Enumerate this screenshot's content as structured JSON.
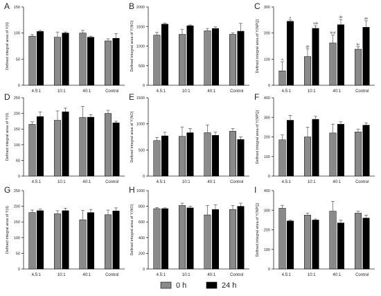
{
  "colors": {
    "h0": "#8a8a8a",
    "h24": "#000000",
    "axis": "#222222",
    "error": "#555555"
  },
  "legend": {
    "items": [
      {
        "label": "0 h",
        "color": "#8a8a8a"
      },
      {
        "label": "24 h",
        "color": "#000000"
      }
    ]
  },
  "chart_data": [
    {
      "panel": "A",
      "type": "bar",
      "ylabel": "Defined integral area of Y(II)",
      "ylim": [
        0,
        150
      ],
      "yticks": [
        0,
        50,
        100,
        150
      ],
      "categories": [
        "4.5:1",
        "10:1",
        "40:1",
        "Control"
      ],
      "series": [
        {
          "name": "0 h",
          "values": [
            94,
            92,
            100,
            85
          ],
          "errors": [
            3,
            10,
            5,
            4
          ]
        },
        {
          "name": "24 h",
          "values": [
            103,
            100,
            92,
            90
          ],
          "errors": [
            2,
            2,
            2,
            9
          ]
        }
      ],
      "annotations": []
    },
    {
      "panel": "B",
      "type": "bar",
      "ylabel": "Defined integral area of Y(NO)",
      "ylim": [
        0,
        2000
      ],
      "yticks": [
        0,
        500,
        1000,
        1500,
        2000
      ],
      "categories": [
        "4.5:1",
        "10:1",
        "40:1",
        "Control"
      ],
      "series": [
        {
          "name": "0 h",
          "values": [
            1280,
            1300,
            1390,
            1300
          ],
          "errors": [
            70,
            130,
            60,
            40
          ]
        },
        {
          "name": "24 h",
          "values": [
            1560,
            1520,
            1450,
            1380
          ],
          "errors": [
            30,
            20,
            40,
            200
          ]
        }
      ],
      "annotations": []
    },
    {
      "panel": "C",
      "type": "bar",
      "ylabel": "Defined integral area of Y(NPQ)",
      "ylim": [
        0,
        300
      ],
      "yticks": [
        0,
        100,
        200,
        300
      ],
      "categories": [
        "4.5:1",
        "10:1",
        "40:1",
        "Control"
      ],
      "series": [
        {
          "name": "0 h",
          "values": [
            55,
            110,
            162,
            138
          ],
          "errors": [
            35,
            30,
            30,
            10
          ]
        },
        {
          "name": "24 h",
          "values": [
            245,
            218,
            232,
            222
          ],
          "errors": [
            5,
            10,
            20,
            25
          ]
        }
      ],
      "annotations": [
        [
          "a",
          "e"
        ],
        [
          "ab",
          "cde"
        ],
        [
          "bcd",
          "de"
        ],
        [
          "bc",
          "de"
        ]
      ]
    },
    {
      "panel": "D",
      "type": "bar",
      "ylabel": "Defined integral area of Y(II)",
      "ylim": [
        0,
        250
      ],
      "yticks": [
        0,
        50,
        100,
        150,
        200,
        250
      ],
      "categories": [
        "4.5:1",
        "10:1",
        "40:1",
        "Control"
      ],
      "series": [
        {
          "name": "0 h",
          "values": [
            165,
            178,
            187,
            200
          ],
          "errors": [
            8,
            30,
            35,
            10
          ]
        },
        {
          "name": "24 h",
          "values": [
            190,
            205,
            188,
            170
          ],
          "errors": [
            15,
            12,
            8,
            5
          ]
        }
      ],
      "annotations": []
    },
    {
      "panel": "E",
      "type": "bar",
      "ylabel": "Defined integral area of Y(NO)",
      "ylim": [
        0,
        1500
      ],
      "yticks": [
        0,
        500,
        1000,
        1500
      ],
      "categories": [
        "4.5:1",
        "10:1",
        "40:1",
        "Control"
      ],
      "series": [
        {
          "name": "0 h",
          "values": [
            680,
            760,
            830,
            860
          ],
          "errors": [
            60,
            180,
            150,
            50
          ]
        },
        {
          "name": "24 h",
          "values": [
            770,
            830,
            780,
            700
          ],
          "errors": [
            70,
            80,
            60,
            50
          ]
        }
      ],
      "annotations": []
    },
    {
      "panel": "F",
      "type": "bar",
      "ylabel": "Defined integral area of Y(NPQ)",
      "ylim": [
        0,
        400
      ],
      "yticks": [
        0,
        100,
        200,
        300,
        400
      ],
      "categories": [
        "4.5:1",
        "10:1",
        "40:1",
        "Control"
      ],
      "series": [
        {
          "name": "0 h",
          "values": [
            185,
            200,
            220,
            225
          ],
          "errors": [
            25,
            50,
            45,
            15
          ]
        },
        {
          "name": "24 h",
          "values": [
            285,
            290,
            265,
            260
          ],
          "errors": [
            25,
            15,
            12,
            12
          ]
        }
      ],
      "annotations": []
    },
    {
      "panel": "G",
      "type": "bar",
      "ylabel": "Defined integral area of Y(II)",
      "ylim": [
        0,
        250
      ],
      "yticks": [
        0,
        50,
        100,
        150,
        200,
        250
      ],
      "categories": [
        "4.5:1",
        "10:1",
        "40:1",
        "Control"
      ],
      "series": [
        {
          "name": "0 h",
          "values": [
            180,
            176,
            157,
            173
          ],
          "errors": [
            8,
            10,
            30,
            15
          ]
        },
        {
          "name": "24 h",
          "values": [
            186,
            186,
            180,
            185
          ],
          "errors": [
            5,
            8,
            10,
            10
          ]
        }
      ],
      "annotations": []
    },
    {
      "panel": "H",
      "type": "bar",
      "ylabel": "Defined integral area of Y(NO)",
      "ylim": [
        0,
        1000
      ],
      "yticks": [
        0,
        200,
        400,
        600,
        800,
        1000
      ],
      "categories": [
        "4.5:1",
        "10:1",
        "40:1",
        "Control"
      ],
      "series": [
        {
          "name": "0 h",
          "values": [
            770,
            810,
            690,
            760
          ],
          "errors": [
            15,
            30,
            120,
            50
          ]
        },
        {
          "name": "24 h",
          "values": [
            770,
            780,
            760,
            800
          ],
          "errors": [
            10,
            20,
            60,
            40
          ]
        }
      ],
      "annotations": []
    },
    {
      "panel": "I",
      "type": "bar",
      "ylabel": "Defined integral area of Y(NPQ)",
      "ylim": [
        0,
        400
      ],
      "yticks": [
        0,
        100,
        200,
        300,
        400
      ],
      "categories": [
        "4.5:1",
        "10:1",
        "40:1",
        "Control"
      ],
      "series": [
        {
          "name": "0 h",
          "values": [
            310,
            275,
            295,
            285
          ],
          "errors": [
            15,
            10,
            50,
            10
          ]
        },
        {
          "name": "24 h",
          "values": [
            245,
            250,
            235,
            260
          ],
          "errors": [
            5,
            5,
            15,
            15
          ]
        }
      ],
      "annotations": []
    }
  ]
}
